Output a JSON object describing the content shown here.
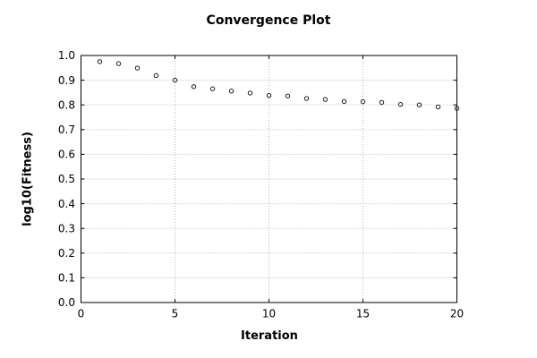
{
  "chart_data": {
    "type": "scatter",
    "title": "Convergence Plot",
    "xlabel": "Iteration",
    "ylabel": "log10(Fitness)",
    "x": [
      1,
      2,
      3,
      4,
      5,
      6,
      7,
      8,
      9,
      10,
      11,
      12,
      13,
      14,
      15,
      16,
      17,
      18,
      19,
      20
    ],
    "y": [
      0.975,
      0.967,
      0.949,
      0.919,
      0.9,
      0.874,
      0.865,
      0.856,
      0.848,
      0.838,
      0.836,
      0.826,
      0.822,
      0.814,
      0.813,
      0.81,
      0.802,
      0.8,
      0.792,
      0.786
    ],
    "xlim": [
      0,
      20
    ],
    "ylim": [
      0.0,
      1.0
    ],
    "xtick_values": [
      0,
      5,
      10,
      15,
      20
    ],
    "xtick_labels": [
      "0",
      "5",
      "10",
      "15",
      "20"
    ],
    "ytick_values": [
      0.0,
      0.1,
      0.2,
      0.3,
      0.4,
      0.5,
      0.6,
      0.7,
      0.8,
      0.9,
      1.0
    ],
    "ytick_labels": [
      "0.0",
      "0.1",
      "0.2",
      "0.3",
      "0.4",
      "0.5",
      "0.6",
      "0.7",
      "0.8",
      "0.9",
      "1.0"
    ],
    "grid": true,
    "legend": "none",
    "marker": "open-circle",
    "colors": {
      "background": "#ffffff",
      "axis": "#000000",
      "grid": "#b4b4b4",
      "marker": "#1a1a1a",
      "text": "#000000"
    }
  }
}
